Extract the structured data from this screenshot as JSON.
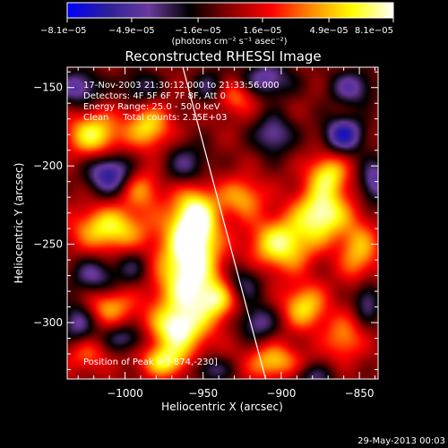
{
  "chart_data": {
    "type": "heatmap",
    "title": "Reconstructed RHESSI Image",
    "xlabel": "Heliocentric X (arcsec)",
    "ylabel": "Heliocentric Y (arcsec)",
    "xlim": [
      -1037,
      -838
    ],
    "ylim": [
      -336,
      -137
    ],
    "x_ticks": [
      -1000,
      -950,
      -900,
      -850
    ],
    "y_ticks": [
      -300,
      -250,
      -200,
      -150
    ],
    "x_tick_labels": [
      "−1000",
      "−950",
      "−900",
      "−850"
    ],
    "y_tick_labels": [
      "−300",
      "−250",
      "−200",
      "−150"
    ],
    "colorbar": {
      "ticks": [
        -8.1e-05,
        -4.9e-05,
        -1.6e-05,
        1.6e-05,
        4.9e-05,
        8.1e-05
      ],
      "tick_labels": [
        "−8.1e−05",
        "−4.9e−05",
        "−1.6e−05",
        "1.6e−05",
        "4.9e−05",
        "8.1e−05"
      ],
      "range": [
        -8.1e-05,
        8.1e-05
      ],
      "unit_label": "(photons cm⁻² s⁻¹ asec⁻²)",
      "stops": [
        "#0000ff",
        "#2d1e99",
        "#6b3a9e",
        "#000000",
        "#8b0000",
        "#ff0000",
        "#ff8c00",
        "#ffff00",
        "#ffffff"
      ]
    },
    "annotations": [
      "17-Nov-2003 21:30:12.000 to 21:33:56.000",
      "Detectors: 4F 5F 6F 7F 8F, Att 0",
      "Energy Range: 25.0 - 50.0 keV",
      "Clean     Total counts: 2.15E+03"
    ],
    "peak_label": "Position of Peak = [-874,-230]",
    "peak": [
      -874,
      -230
    ],
    "limb_line": [
      [
        -963,
        -137
      ],
      [
        -910,
        -336
      ]
    ],
    "blobs": [
      {
        "x": -960,
        "y": -270,
        "v": 1.0,
        "sx": 14,
        "sy": 26
      },
      {
        "x": -955,
        "y": -235,
        "v": 0.9,
        "sx": 10,
        "sy": 16
      },
      {
        "x": -968,
        "y": -305,
        "v": 0.7,
        "sx": 12,
        "sy": 10
      },
      {
        "x": -1010,
        "y": -240,
        "v": 0.8,
        "sx": 16,
        "sy": 10
      },
      {
        "x": -1020,
        "y": -180,
        "v": 0.8,
        "sx": 12,
        "sy": 10
      },
      {
        "x": -985,
        "y": -175,
        "v": 0.7,
        "sx": 10,
        "sy": 10
      },
      {
        "x": -990,
        "y": -215,
        "v": 0.5,
        "sx": 9,
        "sy": 9
      },
      {
        "x": -1010,
        "y": -290,
        "v": 0.55,
        "sx": 12,
        "sy": 8
      },
      {
        "x": -975,
        "y": -325,
        "v": 0.7,
        "sx": 10,
        "sy": 7
      },
      {
        "x": -1025,
        "y": -320,
        "v": 0.4,
        "sx": 10,
        "sy": 8
      },
      {
        "x": -900,
        "y": -250,
        "v": 0.85,
        "sx": 14,
        "sy": 12
      },
      {
        "x": -874,
        "y": -230,
        "v": 0.95,
        "sx": 12,
        "sy": 12
      },
      {
        "x": -870,
        "y": -205,
        "v": 0.7,
        "sx": 9,
        "sy": 9
      },
      {
        "x": -850,
        "y": -255,
        "v": 0.6,
        "sx": 9,
        "sy": 14
      },
      {
        "x": -885,
        "y": -290,
        "v": 0.7,
        "sx": 10,
        "sy": 10
      },
      {
        "x": -925,
        "y": -220,
        "v": 0.55,
        "sx": 10,
        "sy": 9
      },
      {
        "x": -930,
        "y": -155,
        "v": 0.5,
        "sx": 10,
        "sy": 8
      },
      {
        "x": -905,
        "y": -325,
        "v": 0.65,
        "sx": 12,
        "sy": 8
      },
      {
        "x": -860,
        "y": -310,
        "v": 0.5,
        "sx": 9,
        "sy": 10
      },
      {
        "x": -940,
        "y": -285,
        "v": 0.6,
        "sx": 9,
        "sy": 9
      },
      {
        "x": -1030,
        "y": -150,
        "v": -0.6,
        "sx": 10,
        "sy": 8
      },
      {
        "x": -1010,
        "y": -205,
        "v": -0.8,
        "sx": 10,
        "sy": 9
      },
      {
        "x": -1020,
        "y": -270,
        "v": -0.5,
        "sx": 10,
        "sy": 8
      },
      {
        "x": -995,
        "y": -265,
        "v": -0.35,
        "sx": 8,
        "sy": 8
      },
      {
        "x": -1030,
        "y": -300,
        "v": -0.55,
        "sx": 8,
        "sy": 10
      },
      {
        "x": -1000,
        "y": -310,
        "v": -0.45,
        "sx": 10,
        "sy": 6
      },
      {
        "x": -960,
        "y": -200,
        "v": -0.5,
        "sx": 10,
        "sy": 10
      },
      {
        "x": -945,
        "y": -150,
        "v": -0.45,
        "sx": 8,
        "sy": 8
      },
      {
        "x": -910,
        "y": -145,
        "v": -0.6,
        "sx": 12,
        "sy": 8
      },
      {
        "x": -905,
        "y": -180,
        "v": -0.55,
        "sx": 9,
        "sy": 9
      },
      {
        "x": -860,
        "y": -180,
        "v": -0.8,
        "sx": 9,
        "sy": 8
      },
      {
        "x": -855,
        "y": -150,
        "v": -0.55,
        "sx": 10,
        "sy": 8
      },
      {
        "x": -840,
        "y": -210,
        "v": -0.6,
        "sx": 7,
        "sy": 10
      },
      {
        "x": -925,
        "y": -275,
        "v": -0.45,
        "sx": 9,
        "sy": 9
      },
      {
        "x": -915,
        "y": -300,
        "v": -0.5,
        "sx": 9,
        "sy": 8
      },
      {
        "x": -945,
        "y": -330,
        "v": -0.45,
        "sx": 9,
        "sy": 6
      },
      {
        "x": -845,
        "y": -285,
        "v": -0.5,
        "sx": 6,
        "sy": 10
      },
      {
        "x": -880,
        "y": -335,
        "v": -0.4,
        "sx": 10,
        "sy": 6
      },
      {
        "x": -990,
        "y": -150,
        "v": -0.4,
        "sx": 9,
        "sy": 8
      }
    ]
  },
  "footer": {
    "timestamp": "29-May-2013 00:03"
  }
}
